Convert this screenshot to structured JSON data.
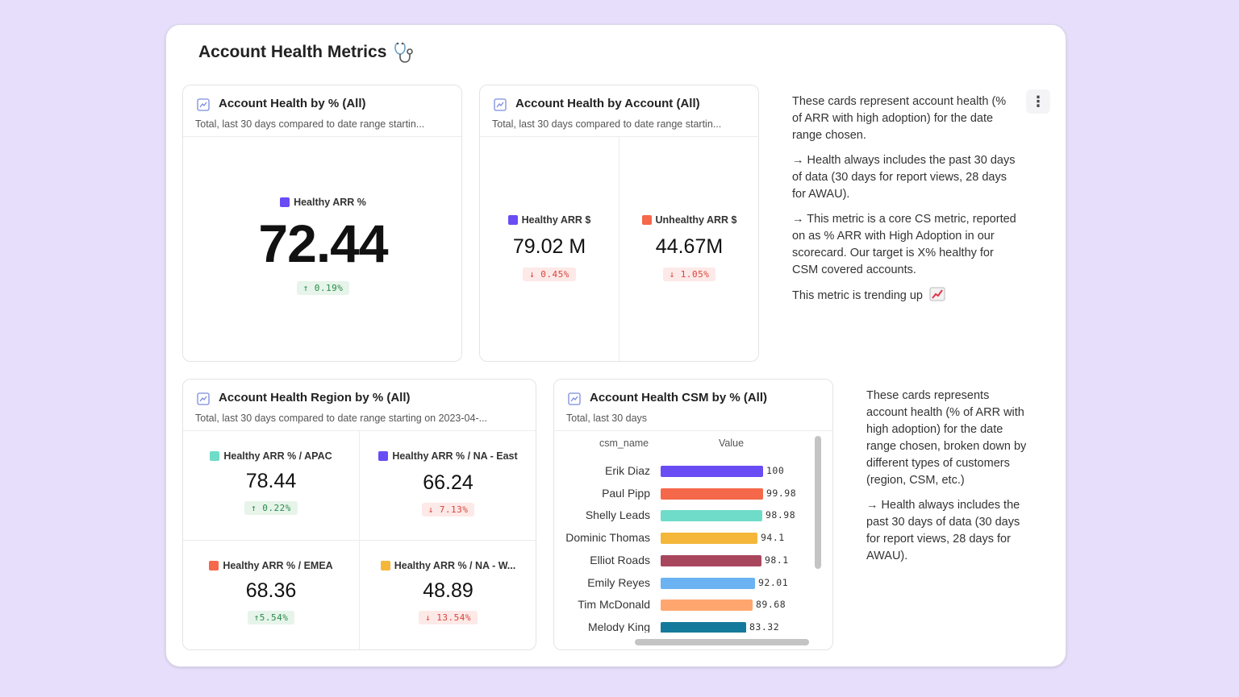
{
  "board": {
    "title": "Account Health Metrics",
    "title_icon": "stethoscope-icon"
  },
  "cards": {
    "pct": {
      "title": "Account Health by % (All)",
      "subtitle": "Total, last 30 days compared to date range startin...",
      "metric": {
        "label": "Healthy ARR %",
        "color": "#6a4cf5",
        "value": "72.44",
        "delta": "↑ 0.19%"
      }
    },
    "account": {
      "title": "Account Health by Account (All)",
      "subtitle": "Total, last 30 days compared to date range startin...",
      "metrics": [
        {
          "label": "Healthy ARR $",
          "color": "#6a4cf5",
          "value": "79.02 M",
          "delta": "↓ 0.45%"
        },
        {
          "label": "Unhealthy ARR $",
          "color": "#f5684a",
          "value": "44.67M",
          "delta": "↓ 1.05%"
        }
      ]
    },
    "region": {
      "title": "Account Health Region by % (All)",
      "subtitle": "Total, last 30 days compared to date range starting on 2023-04-...",
      "metrics": [
        {
          "label": "Healthy ARR % / APAC",
          "color": "#6fdcc9",
          "value": "78.44",
          "delta": "↑ 0.22%",
          "dir": "up"
        },
        {
          "label": "Healthy ARR % / NA - East",
          "color": "#6a4cf5",
          "value": "66.24",
          "delta": "↓ 7.13%",
          "dir": "down"
        },
        {
          "label": "Healthy ARR % / EMEA",
          "color": "#f5684a",
          "value": "68.36",
          "delta": "↑5.54%",
          "dir": "up"
        },
        {
          "label": "Healthy ARR % / NA - W...",
          "color": "#f4b73a",
          "value": "48.89",
          "delta": "↓ 13.54%",
          "dir": "down"
        }
      ]
    },
    "csm": {
      "title": "Account Health CSM by % (All)",
      "subtitle": "Total, last 30 days",
      "col_name": "csm_name",
      "col_value": "Value"
    }
  },
  "chart_data": {
    "type": "bar",
    "orientation": "horizontal",
    "categories": [
      "Erik Diaz",
      "Paul Pipp",
      "Shelly Leads",
      "Dominic Thomas",
      "Elliot Roads",
      "Emily Reyes",
      "Tim McDonald",
      "Melody King"
    ],
    "values": [
      100,
      99.98,
      98.98,
      94.1,
      98.1,
      92.01,
      89.68,
      83.32
    ],
    "value_labels": [
      "100",
      "99.98",
      "98.98",
      "94.1",
      "98.1",
      "92.01",
      "89.68",
      "83.32"
    ],
    "colors": [
      "#6a4cf5",
      "#f5684a",
      "#6fdcc9",
      "#f4b73a",
      "#a8465e",
      "#6ab2f2",
      "#ffa66e",
      "#137a9c"
    ],
    "xlim": [
      0,
      100
    ]
  },
  "notes1": {
    "p1": "These cards represent account health (% of ARR with high adoption) for the date range chosen.",
    "p2": "→ Health always includes the past 30 days of data (30 days for report views, 28 days for AWAU).",
    "p3": "→ This metric is a core CS metric, reported on as % ARR with High Adoption in our scorecard. Our target is X% healthy for CSM covered accounts.",
    "p4": "This metric is trending up",
    "p4_icon": "chart-increasing-icon"
  },
  "notes2": {
    "p1": "These cards represents account health (% of ARR with high adoption) for the date range chosen, broken down by different types of customers (region, CSM, etc.)",
    "p2": "→ Health always includes the past 30 days of data (30 days for report views, 28 days for AWAU)."
  }
}
